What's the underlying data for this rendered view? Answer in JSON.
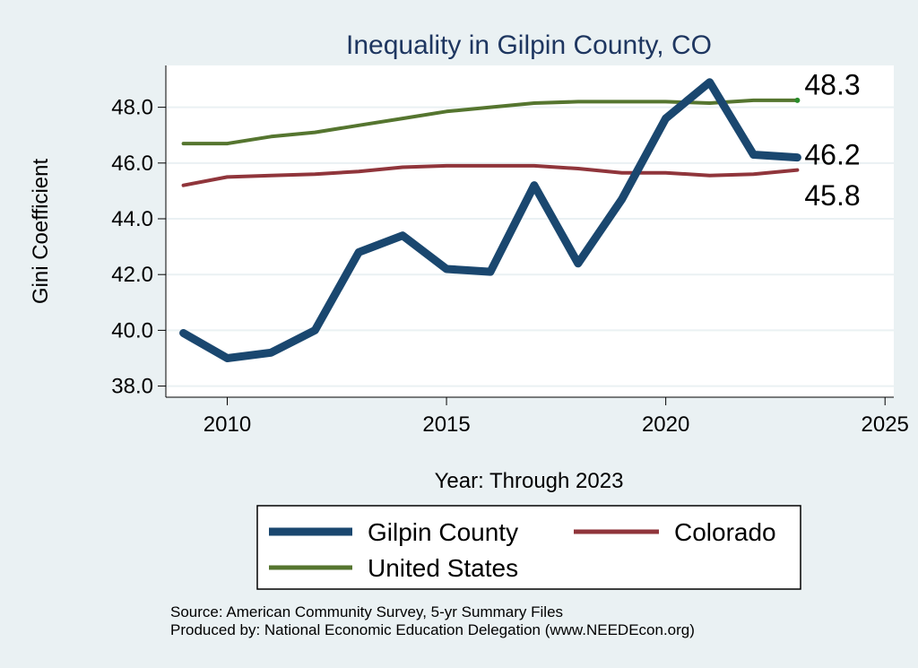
{
  "chart_data": {
    "type": "line",
    "title": "Inequality in Gilpin County, CO",
    "xlabel": "Year: Through 2023",
    "ylabel": "Gini Coefficient",
    "xlim": [
      2008.6,
      2025.2
    ],
    "ylim": [
      37.6,
      49.5
    ],
    "x_ticks": [
      2010,
      2015,
      2020,
      2025
    ],
    "y_ticks": [
      38.0,
      40.0,
      42.0,
      44.0,
      46.0,
      48.0
    ],
    "y_tick_labels": [
      "38.0",
      "40.0",
      "42.0",
      "44.0",
      "46.0",
      "48.0"
    ],
    "grid": true,
    "legend_position": "bottom",
    "x": [
      2009,
      2010,
      2011,
      2012,
      2013,
      2014,
      2015,
      2016,
      2017,
      2018,
      2019,
      2020,
      2021,
      2022,
      2023
    ],
    "series": [
      {
        "name": "Gilpin County",
        "color": "#1a476f",
        "values": [
          39.9,
          39.0,
          39.2,
          40.0,
          42.8,
          43.4,
          42.2,
          42.1,
          45.2,
          42.4,
          44.7,
          47.6,
          48.9,
          46.3,
          46.2
        ],
        "end_label": "46.2"
      },
      {
        "name": "Colorado",
        "color": "#90353b",
        "values": [
          45.2,
          45.5,
          45.55,
          45.6,
          45.7,
          45.85,
          45.9,
          45.9,
          45.9,
          45.8,
          45.65,
          45.65,
          45.55,
          45.6,
          45.75
        ],
        "end_label": "45.8"
      },
      {
        "name": "United States",
        "color": "#55752f",
        "values": [
          46.7,
          46.7,
          46.95,
          47.1,
          47.35,
          47.6,
          47.85,
          48.0,
          48.15,
          48.2,
          48.2,
          48.2,
          48.15,
          48.25,
          48.25
        ],
        "end_label": "48.3"
      }
    ],
    "source_lines": [
      "Source: American Community Survey, 5-yr Summary Files",
      "Produced by: National Economic Education Delegation (www.NEEDEcon.org)"
    ]
  }
}
